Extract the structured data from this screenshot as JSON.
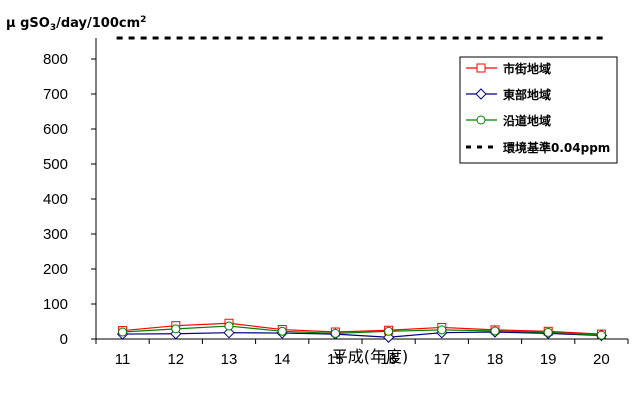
{
  "chart_data": {
    "type": "line",
    "ylabel_main": "μ gSO",
    "ylabel_sub": "3",
    "ylabel_tail": "/day/100cm",
    "ylabel_sup": "2",
    "xlabel": "平成(年度)",
    "categories": [
      "11",
      "12",
      "13",
      "14",
      "15",
      "16",
      "17",
      "18",
      "19",
      "20"
    ],
    "ylim": [
      0,
      860
    ],
    "yticks": [
      "0",
      "100",
      "200",
      "300",
      "400",
      "500",
      "600",
      "700",
      "800"
    ],
    "legend_position": "top-right",
    "grid": false,
    "series": [
      {
        "name": "市街地域",
        "color": "#ff0000",
        "marker": "square",
        "values": [
          24,
          38,
          45,
          27,
          20,
          25,
          33,
          26,
          22,
          14
        ]
      },
      {
        "name": "東部地域",
        "color": "#000080",
        "marker": "diamond",
        "values": [
          14,
          15,
          18,
          17,
          14,
          5,
          18,
          20,
          16,
          10
        ]
      },
      {
        "name": "沿道地域",
        "color": "#008000",
        "marker": "circle",
        "values": [
          20,
          29,
          37,
          22,
          16,
          22,
          26,
          23,
          19,
          11
        ]
      }
    ],
    "reference": {
      "name": "環境基準0.04ppm",
      "value": 860,
      "color": "#000000"
    }
  }
}
